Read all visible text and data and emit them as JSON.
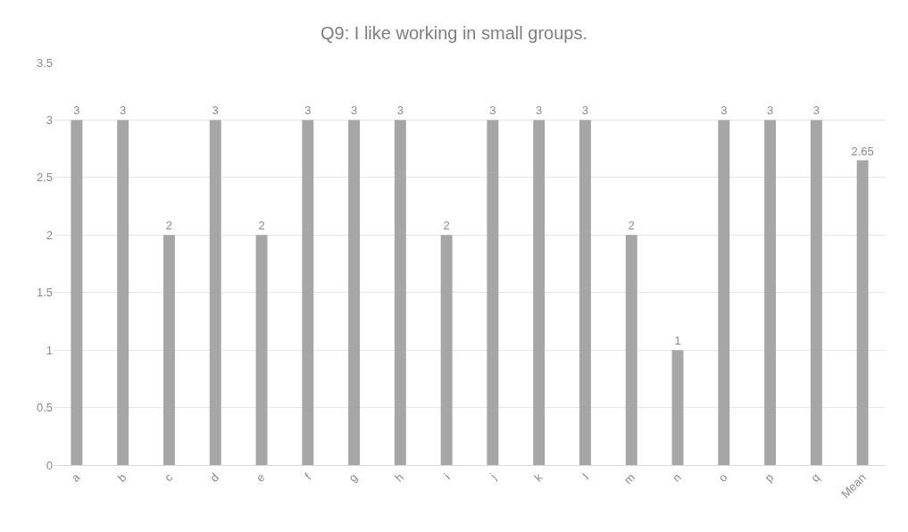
{
  "chart_data": {
    "type": "bar",
    "title": "Q9: I like working in small groups.",
    "categories": [
      "a",
      "b",
      "c",
      "d",
      "e",
      "f",
      "g",
      "h",
      "i",
      "j",
      "k",
      "l",
      "m",
      "n",
      "o",
      "p",
      "q",
      "Mean"
    ],
    "values": [
      3,
      3,
      2,
      3,
      2,
      3,
      3,
      3,
      2,
      3,
      3,
      3,
      2,
      1,
      3,
      3,
      3,
      2.65
    ],
    "color": "#a6a6a6",
    "ylim": [
      0,
      3.5
    ],
    "yticks": [
      0,
      0.5,
      1,
      1.5,
      2,
      2.5,
      3,
      3.5
    ],
    "grid": "y",
    "data_labels": true
  }
}
